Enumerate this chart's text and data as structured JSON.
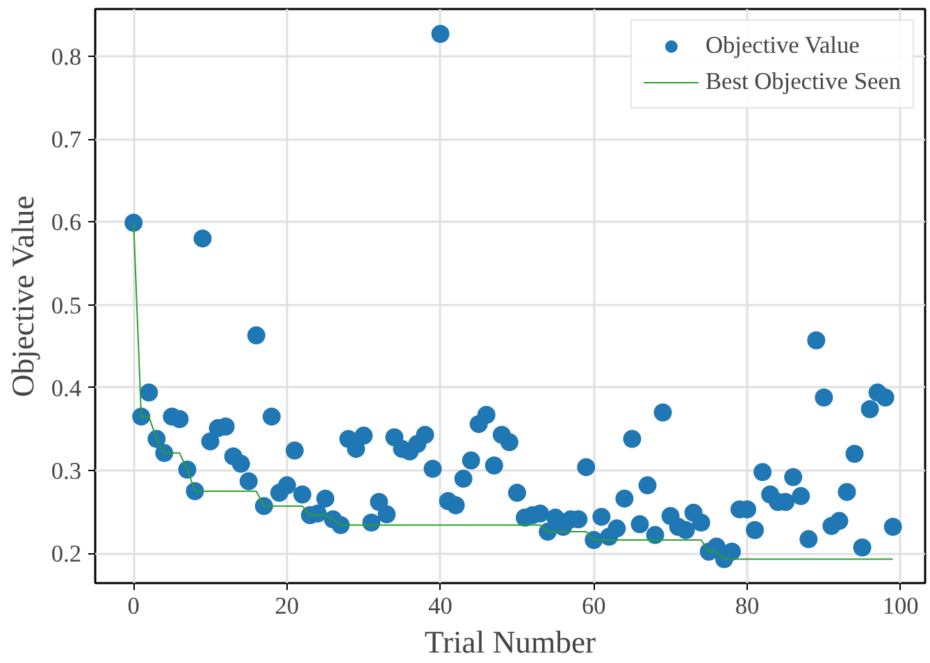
{
  "chart_data": {
    "type": "scatter",
    "xlabel": "Trial Number",
    "ylabel": "Objective Value",
    "xlim": [
      -5,
      103.2
    ],
    "ylim": [
      0.164,
      0.857
    ],
    "xticks": [
      0,
      20,
      40,
      60,
      80,
      100
    ],
    "yticks": [
      0.2,
      0.3,
      0.4,
      0.5,
      0.6,
      0.7,
      0.8
    ],
    "grid": true,
    "legend": "top right",
    "x": [
      0,
      1,
      2,
      3,
      4,
      5,
      6,
      7,
      8,
      9,
      10,
      11,
      12,
      13,
      14,
      15,
      16,
      17,
      18,
      19,
      20,
      21,
      22,
      23,
      24,
      25,
      26,
      27,
      28,
      29,
      30,
      31,
      32,
      33,
      34,
      35,
      36,
      37,
      38,
      39,
      40,
      41,
      42,
      43,
      44,
      45,
      46,
      47,
      48,
      49,
      50,
      51,
      52,
      53,
      54,
      55,
      56,
      57,
      58,
      59,
      60,
      61,
      62,
      63,
      64,
      65,
      66,
      67,
      68,
      69,
      70,
      71,
      72,
      73,
      74,
      75,
      76,
      77,
      78,
      79,
      80,
      81,
      82,
      83,
      84,
      85,
      86,
      87,
      88,
      89,
      90,
      91,
      92,
      93,
      94,
      95,
      96,
      97,
      98,
      99
    ],
    "series": [
      {
        "name": "Objective Value",
        "marker": "circle",
        "color": "#1f77b4",
        "values": [
          0.599,
          0.365,
          0.394,
          0.338,
          0.321,
          0.365,
          0.362,
          0.301,
          0.275,
          0.58,
          0.335,
          0.351,
          0.353,
          0.317,
          0.308,
          0.287,
          0.463,
          0.257,
          0.365,
          0.273,
          0.282,
          0.324,
          0.271,
          0.246,
          0.248,
          0.266,
          0.241,
          0.234,
          0.338,
          0.326,
          0.342,
          0.237,
          0.262,
          0.247,
          0.34,
          0.326,
          0.323,
          0.332,
          0.343,
          0.302,
          0.827,
          0.263,
          0.258,
          0.29,
          0.312,
          0.356,
          0.367,
          0.306,
          0.343,
          0.334,
          0.273,
          0.243,
          0.246,
          0.248,
          0.226,
          0.243,
          0.232,
          0.241,
          0.241,
          0.304,
          0.216,
          0.244,
          0.22,
          0.23,
          0.266,
          0.338,
          0.235,
          0.282,
          0.222,
          0.37,
          0.245,
          0.232,
          0.228,
          0.249,
          0.237,
          0.202,
          0.208,
          0.193,
          0.202,
          0.253,
          0.253,
          0.228,
          0.298,
          0.271,
          0.262,
          0.262,
          0.292,
          0.269,
          0.217,
          0.457,
          0.388,
          0.233,
          0.239,
          0.274,
          0.32,
          0.207,
          0.374,
          0.394,
          0.388,
          0.232
        ]
      },
      {
        "name": "Best Objective Seen",
        "type": "line",
        "marker": "none",
        "color": "#2ca02c",
        "values": [
          0.599,
          0.365,
          0.365,
          0.338,
          0.321,
          0.321,
          0.321,
          0.301,
          0.275,
          0.275,
          0.275,
          0.275,
          0.275,
          0.275,
          0.275,
          0.275,
          0.275,
          0.257,
          0.257,
          0.257,
          0.257,
          0.257,
          0.257,
          0.246,
          0.246,
          0.246,
          0.241,
          0.234,
          0.234,
          0.234,
          0.234,
          0.234,
          0.234,
          0.234,
          0.234,
          0.234,
          0.234,
          0.234,
          0.234,
          0.234,
          0.234,
          0.234,
          0.234,
          0.234,
          0.234,
          0.234,
          0.234,
          0.234,
          0.234,
          0.234,
          0.234,
          0.234,
          0.234,
          0.234,
          0.226,
          0.226,
          0.226,
          0.226,
          0.226,
          0.226,
          0.216,
          0.216,
          0.216,
          0.216,
          0.216,
          0.216,
          0.216,
          0.216,
          0.216,
          0.216,
          0.216,
          0.216,
          0.216,
          0.216,
          0.216,
          0.202,
          0.202,
          0.193,
          0.193,
          0.193,
          0.193,
          0.193,
          0.193,
          0.193,
          0.193,
          0.193,
          0.193,
          0.193,
          0.193,
          0.193,
          0.193,
          0.193,
          0.193,
          0.193,
          0.193,
          0.193,
          0.193,
          0.193,
          0.193,
          0.193
        ]
      }
    ]
  }
}
